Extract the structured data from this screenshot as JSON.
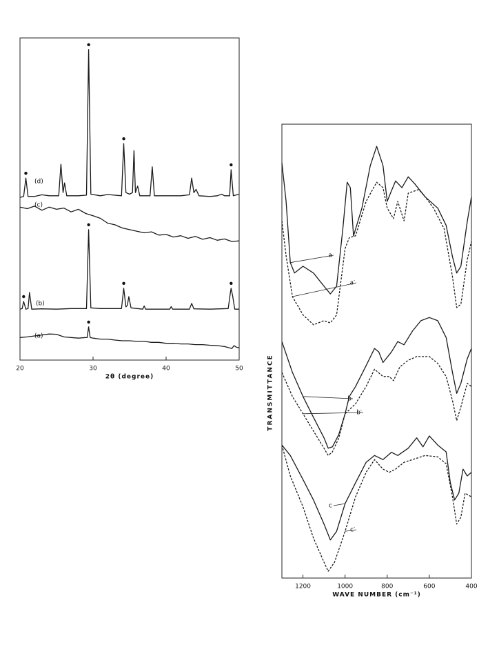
{
  "chart_data": [
    {
      "type": "line",
      "xlabel": "2θ (degree)",
      "xlim": [
        20,
        50
      ],
      "xticks": [
        20,
        30,
        40,
        50
      ],
      "ylim": [
        0,
        100
      ],
      "series": [
        {
          "name": "(d)",
          "peaks": [
            20.8,
            29.4,
            34.2,
            48.9
          ],
          "x": [
            20,
            20.5,
            20.8,
            21.1,
            22,
            23,
            24,
            25.3,
            25.6,
            25.9,
            26.1,
            26.4,
            28,
            29.1,
            29.4,
            29.7,
            31,
            32,
            33.9,
            34.2,
            34.5,
            35,
            35.4,
            35.6,
            35.8,
            36.1,
            36.4,
            37.8,
            38.1,
            38.4,
            40,
            42,
            43.2,
            43.5,
            43.8,
            44.1,
            44.5,
            46,
            47,
            47.6,
            48,
            48.7,
            48.9,
            49.2,
            50
          ],
          "values": [
            50.5,
            50.8,
            56.5,
            50.8,
            50.8,
            51.3,
            51,
            51,
            60.8,
            52,
            55,
            51,
            51,
            51.2,
            96.4,
            51.5,
            51,
            51.4,
            51,
            67.2,
            52,
            51.5,
            52,
            65,
            52,
            54,
            51,
            51,
            60,
            51,
            51,
            51,
            51.3,
            56.5,
            52,
            53,
            51,
            50.8,
            51,
            51.5,
            51,
            51,
            59.1,
            51,
            51.5
          ]
        },
        {
          "name": "(c)",
          "peaks": [],
          "x": [
            20,
            21,
            22,
            23,
            24,
            25,
            26,
            27,
            28,
            29,
            30,
            31,
            32,
            33,
            34,
            35,
            36,
            37,
            38,
            39,
            40,
            41,
            42,
            43,
            44,
            45,
            46,
            47,
            48,
            49,
            50
          ],
          "values": [
            47.5,
            47,
            47.8,
            46.5,
            47.5,
            46.8,
            47.2,
            46,
            46.8,
            45.5,
            44.8,
            44,
            42.5,
            42,
            41,
            40.5,
            40,
            39.5,
            39.8,
            38.8,
            39,
            38.2,
            38.6,
            37.8,
            38.4,
            37.5,
            38,
            37.2,
            37.6,
            36.8,
            37
          ]
        },
        {
          "name": "(b)",
          "peaks": [
            20.5,
            29.4,
            34.2,
            48.9
          ],
          "x": [
            20,
            20.3,
            20.5,
            20.8,
            21.1,
            21.3,
            21.6,
            23,
            25,
            27,
            29.1,
            29.4,
            29.7,
            31,
            33,
            33.9,
            34.2,
            34.5,
            34.7,
            34.9,
            35.2,
            36.8,
            37,
            37.2,
            40.5,
            40.7,
            40.9,
            43.2,
            43.5,
            43.8,
            46,
            48.5,
            48.8,
            48.9,
            49.1,
            49.4,
            50
          ],
          "values": [
            15.8,
            16,
            18.2,
            15.8,
            16,
            21,
            15.8,
            15.9,
            15.8,
            16,
            16,
            40.5,
            16.2,
            16,
            16,
            16,
            22.3,
            16.5,
            17,
            19.7,
            16.2,
            15.8,
            16.8,
            15.8,
            15.8,
            16.6,
            15.8,
            15.8,
            17.6,
            15.9,
            15.8,
            16,
            21,
            22.3,
            20,
            15.8,
            15.8
          ]
        },
        {
          "name": "(a)",
          "peaks": [
            29.4
          ],
          "x": [
            20,
            21,
            22,
            23,
            24,
            25,
            26,
            27,
            28,
            29,
            29.2,
            29.4,
            29.6,
            30,
            31,
            32,
            33,
            34,
            35,
            36,
            37,
            38,
            39,
            40,
            41,
            42,
            43,
            44,
            45,
            46,
            47,
            48,
            49,
            49.3,
            49.6,
            50
          ],
          "values": [
            7,
            7.2,
            7.5,
            7.8,
            8.1,
            8,
            7.2,
            7,
            6.8,
            7,
            7,
            10.3,
            7,
            6.8,
            6.5,
            6.5,
            6.2,
            6,
            6,
            5.8,
            5.8,
            5.5,
            5.5,
            5.2,
            5.2,
            5,
            5,
            4.8,
            4.8,
            4.6,
            4.5,
            4.2,
            3.6,
            4.5,
            4,
            3.8
          ]
        }
      ]
    },
    {
      "type": "line",
      "xlabel": "WAVE NUMBER (cm⁻¹)",
      "ylabel": "TRANSMITTANCE",
      "xlim": [
        1300,
        400
      ],
      "xticks": [
        1200,
        1000,
        800,
        600,
        400
      ],
      "ylim": [
        0,
        100
      ],
      "series": [
        {
          "name": "a",
          "dashed": false,
          "x": [
            1300,
            1280,
            1260,
            1240,
            1200,
            1150,
            1100,
            1070,
            1040,
            1010,
            990,
            975,
            960,
            920,
            880,
            850,
            820,
            800,
            780,
            760,
            730,
            700,
            670,
            620,
            560,
            520,
            490,
            470,
            450,
            420,
            400
          ],
          "values": [
            91.5,
            83,
            69.5,
            67.2,
            68.7,
            67.2,
            64.3,
            62.6,
            64.3,
            77.2,
            87.2,
            86,
            75.4,
            81.5,
            90.9,
            95.1,
            90.9,
            83,
            85.3,
            87.5,
            86,
            88.4,
            86.9,
            84,
            81.5,
            77.7,
            70.8,
            67.2,
            68.7,
            78.5,
            84
          ]
        },
        {
          "name": "a′",
          "dashed": true,
          "x": [
            1300,
            1280,
            1250,
            1200,
            1150,
            1100,
            1070,
            1040,
            1000,
            980,
            950,
            900,
            850,
            820,
            800,
            770,
            750,
            720,
            700,
            650,
            620,
            580,
            530,
            490,
            470,
            450,
            420,
            400
          ],
          "values": [
            78.7,
            71,
            62,
            58,
            55.8,
            56.7,
            56.2,
            58,
            72.6,
            75,
            75.4,
            83,
            87.2,
            86,
            81.5,
            79.2,
            83,
            78.7,
            84.8,
            85.6,
            84,
            81.5,
            77,
            66.4,
            59.6,
            60.3,
            70.1,
            74.2
          ]
        },
        {
          "name": "b",
          "dashed": false,
          "x": [
            1300,
            1250,
            1200,
            1150,
            1100,
            1080,
            1060,
            1030,
            1000,
            980,
            950,
            900,
            860,
            840,
            820,
            780,
            750,
            720,
            680,
            640,
            600,
            560,
            520,
            490,
            470,
            450,
            420,
            400
          ],
          "values": [
            52.1,
            45.3,
            40,
            35.4,
            30.9,
            28.6,
            28.9,
            31.6,
            36.2,
            40,
            42.2,
            46.8,
            50.6,
            49.8,
            47.5,
            49.8,
            52.1,
            51.4,
            54.4,
            56.7,
            57.4,
            56.7,
            53,
            45.3,
            40.7,
            42.9,
            48.3,
            50.6
          ]
        },
        {
          "name": "b′",
          "dashed": true,
          "x": [
            1300,
            1250,
            1200,
            1150,
            1100,
            1080,
            1060,
            1030,
            1000,
            950,
            900,
            860,
            820,
            790,
            770,
            740,
            700,
            660,
            600,
            560,
            520,
            490,
            470,
            450,
            420,
            400
          ],
          "values": [
            45.3,
            40,
            36.2,
            32.4,
            28.6,
            27,
            27.8,
            30.8,
            36.2,
            38.4,
            42.2,
            46,
            44.4,
            44.4,
            43.5,
            46.5,
            48,
            48.8,
            48.8,
            47.3,
            44.4,
            39.1,
            34.7,
            37.7,
            42.9,
            42.2
          ]
        },
        {
          "name": "c",
          "dashed": false,
          "x": [
            1300,
            1260,
            1200,
            1150,
            1100,
            1070,
            1040,
            1000,
            950,
            900,
            860,
            820,
            780,
            750,
            700,
            660,
            630,
            600,
            560,
            520,
            500,
            480,
            460,
            440,
            420,
            400
          ],
          "values": [
            29.3,
            27,
            21.7,
            17.2,
            11.9,
            8.4,
            10.3,
            16.4,
            21,
            25.5,
            27,
            26.1,
            27.7,
            27,
            28.6,
            30.9,
            28.9,
            31.3,
            29.3,
            27.8,
            21,
            17.2,
            18.7,
            24,
            22.5,
            23.3
          ]
        },
        {
          "name": "c′",
          "dashed": true,
          "x": [
            1300,
            1260,
            1200,
            1150,
            1100,
            1080,
            1050,
            1000,
            950,
            900,
            860,
            820,
            790,
            760,
            720,
            680,
            620,
            560,
            520,
            490,
            470,
            450,
            430,
            400
          ],
          "values": [
            29.3,
            22.5,
            15.7,
            8.8,
            3.5,
            1.5,
            3.5,
            10.3,
            17.9,
            23.3,
            26.1,
            24,
            23.3,
            24,
            25.5,
            26.1,
            27,
            26.7,
            25.2,
            17.9,
            11.9,
            13.4,
            18.7,
            17.9
          ]
        }
      ]
    }
  ]
}
